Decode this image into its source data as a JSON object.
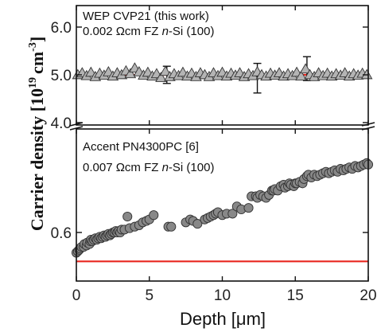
{
  "chart_data": {
    "type": "scatter",
    "xlabel": "Depth [μm]",
    "ylabel_main": "Carrier density [10",
    "ylabel_exp": "19",
    "ylabel_unit": "cm",
    "ylabel_unit_exp": "-3",
    "ylabel_close": "]",
    "xlim": [
      0,
      20
    ],
    "x_ticks": [
      "0",
      "5",
      "10",
      "15",
      "20"
    ],
    "panels": [
      {
        "id": "top",
        "ylim": [
          3.95,
          6.45
        ],
        "y_ticks": [
          {
            "value": 4.0,
            "label": "4.0"
          },
          {
            "value": 5.0,
            "label": "5.0"
          },
          {
            "value": 6.0,
            "label": "6.0"
          }
        ],
        "annotation_line1": "WEP CVP21 (this work)",
        "annotation_line2": {
          "prefix": "0.002 Ωcm FZ ",
          "italic": "n",
          "suffix": "-Si (100)"
        },
        "marker": "triangle",
        "marker_color": "#b4b4b4",
        "reference_line": {
          "y": 5.0,
          "color": "#e8261f"
        },
        "points": [
          [
            0.1,
            5.0
          ],
          [
            0.4,
            5.04
          ],
          [
            0.7,
            4.98
          ],
          [
            1.0,
            5.05
          ],
          [
            1.3,
            4.96
          ],
          [
            1.6,
            5.03
          ],
          [
            1.9,
            4.99
          ],
          [
            2.2,
            5.06
          ],
          [
            2.5,
            4.97
          ],
          [
            2.8,
            5.04
          ],
          [
            3.1,
            5.0
          ],
          [
            3.4,
            5.08
          ],
          [
            3.7,
            5.02
          ],
          [
            4.0,
            5.14
          ],
          [
            4.3,
            5.06
          ],
          [
            4.6,
            4.99
          ],
          [
            4.9,
            5.05
          ],
          [
            5.2,
            4.97
          ],
          [
            5.5,
            5.02
          ],
          [
            5.8,
            4.94
          ],
          [
            6.1,
            5.07
          ],
          [
            6.4,
            4.96
          ],
          [
            6.7,
            5.02
          ],
          [
            7.0,
            4.98
          ],
          [
            7.3,
            5.05
          ],
          [
            7.6,
            4.97
          ],
          [
            7.9,
            5.03
          ],
          [
            8.2,
            4.96
          ],
          [
            8.5,
            5.04
          ],
          [
            8.8,
            5.0
          ],
          [
            9.1,
            4.96
          ],
          [
            9.4,
            5.04
          ],
          [
            9.7,
            4.98
          ],
          [
            10.0,
            5.05
          ],
          [
            10.3,
            4.97
          ],
          [
            10.6,
            5.03
          ],
          [
            10.9,
            4.99
          ],
          [
            11.2,
            5.04
          ],
          [
            11.5,
            4.96
          ],
          [
            11.8,
            5.02
          ],
          [
            12.1,
            4.98
          ],
          [
            12.4,
            5.06
          ],
          [
            12.7,
            5.0
          ],
          [
            13.0,
            4.97
          ],
          [
            13.3,
            5.03
          ],
          [
            13.6,
            4.99
          ],
          [
            13.9,
            5.04
          ],
          [
            14.2,
            4.97
          ],
          [
            14.5,
            5.02
          ],
          [
            14.8,
            4.98
          ],
          [
            15.1,
            5.05
          ],
          [
            15.4,
            4.97
          ],
          [
            15.7,
            5.12
          ],
          [
            16.0,
            5.0
          ],
          [
            16.3,
            4.96
          ],
          [
            16.6,
            5.04
          ],
          [
            16.9,
            4.98
          ],
          [
            17.2,
            5.03
          ],
          [
            17.5,
            4.97
          ],
          [
            17.8,
            5.02
          ],
          [
            18.1,
            4.99
          ],
          [
            18.4,
            5.04
          ],
          [
            18.7,
            4.97
          ],
          [
            19.0,
            5.02
          ],
          [
            19.3,
            4.99
          ],
          [
            19.6,
            5.03
          ],
          [
            19.9,
            5.0
          ]
        ],
        "error_bars": [
          {
            "x": 6.2,
            "y": 4.98,
            "low": 4.82,
            "high": 5.18
          },
          {
            "x": 12.4,
            "y": 4.88,
            "low": 4.62,
            "high": 5.24
          },
          {
            "x": 15.8,
            "y": 5.12,
            "low": 4.88,
            "high": 5.38
          }
        ]
      },
      {
        "id": "bottom",
        "ylim": [
          0.432,
          0.958
        ],
        "y_ticks": [
          {
            "value": 0.6,
            "label": "0.6"
          }
        ],
        "annotation_line1": "Accent PN4300PC [6]",
        "annotation_line2": {
          "prefix": "0.007 Ωcm FZ ",
          "italic": "n",
          "suffix": "-Si (100)"
        },
        "marker": "circle",
        "marker_color": "#888888",
        "reference_line": {
          "y": 0.5,
          "color": "#e8261f"
        },
        "points": [
          [
            0.0,
            0.53
          ],
          [
            0.1,
            0.535
          ],
          [
            0.2,
            0.54
          ],
          [
            0.25,
            0.545
          ],
          [
            0.35,
            0.55
          ],
          [
            0.5,
            0.55
          ],
          [
            0.55,
            0.56
          ],
          [
            0.7,
            0.555
          ],
          [
            0.75,
            0.565
          ],
          [
            0.9,
            0.56
          ],
          [
            0.95,
            0.57
          ],
          [
            1.0,
            0.575
          ],
          [
            1.1,
            0.57
          ],
          [
            1.2,
            0.575
          ],
          [
            1.3,
            0.58
          ],
          [
            1.4,
            0.575
          ],
          [
            1.5,
            0.58
          ],
          [
            1.6,
            0.585
          ],
          [
            1.7,
            0.58
          ],
          [
            1.8,
            0.585
          ],
          [
            1.9,
            0.59
          ],
          [
            2.0,
            0.585
          ],
          [
            2.1,
            0.59
          ],
          [
            2.2,
            0.595
          ],
          [
            2.3,
            0.59
          ],
          [
            2.4,
            0.595
          ],
          [
            2.5,
            0.6
          ],
          [
            2.6,
            0.6
          ],
          [
            2.7,
            0.605
          ],
          [
            2.8,
            0.6
          ],
          [
            2.9,
            0.605
          ],
          [
            3.0,
            0.6
          ],
          [
            3.1,
            0.61
          ],
          [
            3.3,
            0.61
          ],
          [
            3.5,
            0.655
          ],
          [
            3.65,
            0.615
          ],
          [
            4.0,
            0.62
          ],
          [
            4.3,
            0.625
          ],
          [
            4.55,
            0.635
          ],
          [
            4.8,
            0.64
          ],
          [
            5.0,
            0.645
          ],
          [
            5.3,
            0.66
          ],
          [
            6.3,
            0.62
          ],
          [
            6.5,
            0.62
          ],
          [
            7.5,
            0.635
          ],
          [
            7.8,
            0.645
          ],
          [
            8.0,
            0.64
          ],
          [
            8.3,
            0.63
          ],
          [
            8.8,
            0.645
          ],
          [
            9.0,
            0.65
          ],
          [
            9.2,
            0.655
          ],
          [
            9.4,
            0.66
          ],
          [
            9.55,
            0.665
          ],
          [
            9.7,
            0.67
          ],
          [
            10.0,
            0.66
          ],
          [
            10.3,
            0.665
          ],
          [
            10.7,
            0.665
          ],
          [
            11.0,
            0.69
          ],
          [
            11.3,
            0.68
          ],
          [
            11.8,
            0.685
          ],
          [
            12.0,
            0.725
          ],
          [
            12.3,
            0.725
          ],
          [
            12.4,
            0.72
          ],
          [
            12.6,
            0.73
          ],
          [
            12.8,
            0.725
          ],
          [
            13.0,
            0.72
          ],
          [
            13.2,
            0.73
          ],
          [
            13.4,
            0.745
          ],
          [
            13.5,
            0.745
          ],
          [
            13.6,
            0.75
          ],
          [
            13.8,
            0.745
          ],
          [
            14.0,
            0.76
          ],
          [
            14.2,
            0.765
          ],
          [
            14.3,
            0.755
          ],
          [
            14.5,
            0.76
          ],
          [
            14.6,
            0.77
          ],
          [
            14.7,
            0.765
          ],
          [
            14.9,
            0.76
          ],
          [
            15.0,
            0.77
          ],
          [
            15.1,
            0.77
          ],
          [
            15.3,
            0.775
          ],
          [
            15.5,
            0.77
          ],
          [
            15.6,
            0.785
          ],
          [
            15.8,
            0.795
          ],
          [
            15.9,
            0.8
          ],
          [
            16.1,
            0.79
          ],
          [
            16.3,
            0.8
          ],
          [
            16.5,
            0.795
          ],
          [
            16.7,
            0.8
          ],
          [
            16.9,
            0.805
          ],
          [
            17.1,
            0.81
          ],
          [
            17.3,
            0.805
          ],
          [
            17.5,
            0.81
          ],
          [
            17.7,
            0.815
          ],
          [
            17.9,
            0.81
          ],
          [
            18.1,
            0.82
          ],
          [
            18.3,
            0.815
          ],
          [
            18.5,
            0.82
          ],
          [
            18.7,
            0.825
          ],
          [
            18.9,
            0.82
          ],
          [
            19.1,
            0.83
          ],
          [
            19.3,
            0.825
          ],
          [
            19.5,
            0.83
          ],
          [
            19.7,
            0.835
          ],
          [
            19.9,
            0.84
          ],
          [
            20.0,
            0.835
          ]
        ]
      }
    ]
  }
}
